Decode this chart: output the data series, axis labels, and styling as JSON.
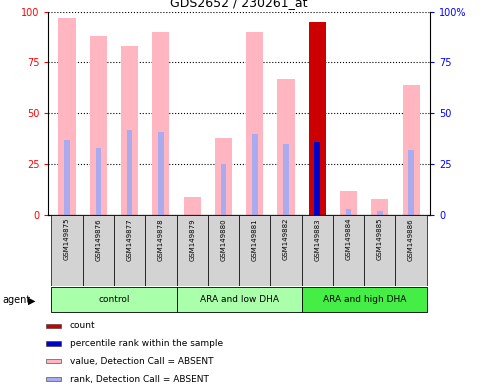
{
  "title": "GDS2652 / 230261_at",
  "samples": [
    "GSM149875",
    "GSM149876",
    "GSM149877",
    "GSM149878",
    "GSM149879",
    "GSM149880",
    "GSM149881",
    "GSM149882",
    "GSM149883",
    "GSM149884",
    "GSM149885",
    "GSM149886"
  ],
  "groups": [
    {
      "label": "control",
      "start": 0,
      "end": 4,
      "color": "#AAFFAA"
    },
    {
      "label": "ARA and low DHA",
      "start": 4,
      "end": 8,
      "color": "#AAFFAA"
    },
    {
      "label": "ARA and high DHA",
      "start": 8,
      "end": 12,
      "color": "#44EE44"
    }
  ],
  "value_bars": [
    97,
    88,
    83,
    90,
    9,
    38,
    90,
    67,
    95,
    12,
    8,
    64
  ],
  "rank_bars": [
    37,
    33,
    42,
    41,
    0,
    25,
    40,
    35,
    36,
    3,
    2,
    32
  ],
  "value_color_absent": "#FFB6C1",
  "value_color_present": "#CC0000",
  "rank_color_absent": "#AAAAEE",
  "rank_color_present": "#0000CC",
  "is_present": [
    false,
    false,
    false,
    false,
    false,
    false,
    false,
    false,
    true,
    false,
    false,
    false
  ],
  "ylim": [
    0,
    100
  ],
  "yticks": [
    0,
    25,
    50,
    75,
    100
  ],
  "legend_items": [
    {
      "color": "#CC0000",
      "label": "count"
    },
    {
      "color": "#0000CC",
      "label": "percentile rank within the sample"
    },
    {
      "color": "#FFB6C1",
      "label": "value, Detection Call = ABSENT"
    },
    {
      "color": "#AAAAEE",
      "label": "rank, Detection Call = ABSENT"
    }
  ]
}
